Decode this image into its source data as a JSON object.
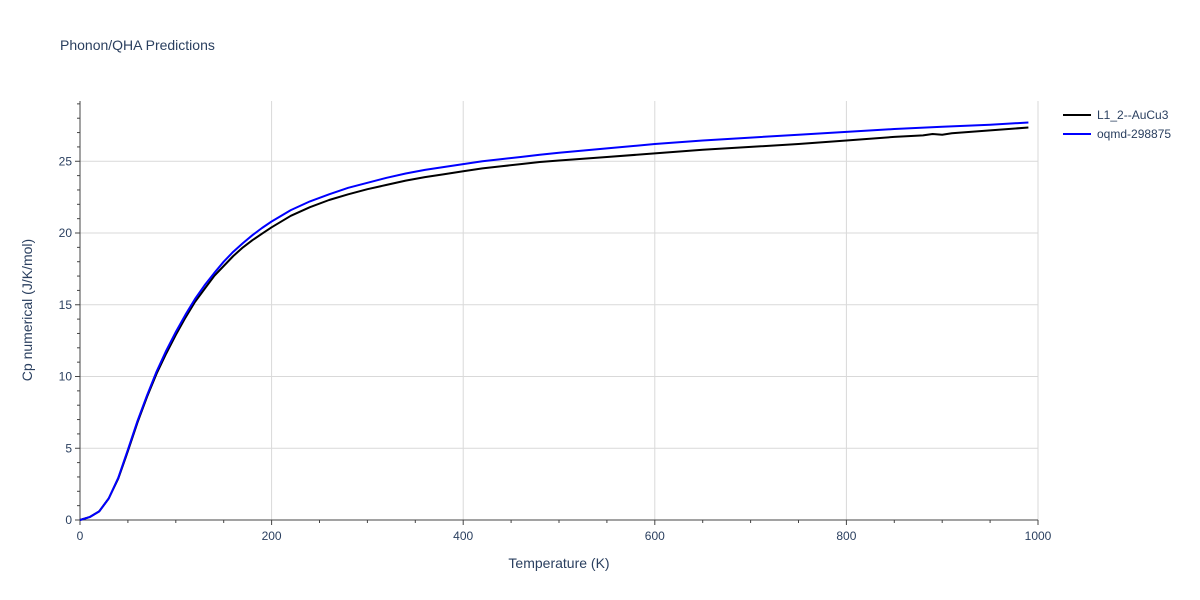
{
  "chart_data": {
    "type": "line",
    "title": "Phonon/QHA Predictions",
    "xlabel": "Temperature (K)",
    "ylabel": "Cp numerical (J/K/mol)",
    "xlim": [
      0,
      1000
    ],
    "ylim": [
      0,
      29.2
    ],
    "xticks": [
      0,
      200,
      400,
      600,
      800,
      1000
    ],
    "yticks": [
      0,
      5,
      10,
      15,
      20,
      25
    ],
    "grid": true,
    "legend_position": "top-right",
    "series": [
      {
        "name": "L1_2--AuCu3",
        "color": "#000000",
        "x": [
          0,
          10,
          20,
          30,
          40,
          50,
          60,
          70,
          80,
          90,
          100,
          110,
          120,
          130,
          140,
          150,
          160,
          170,
          180,
          190,
          200,
          220,
          240,
          260,
          280,
          300,
          320,
          340,
          360,
          380,
          400,
          420,
          440,
          460,
          480,
          500,
          550,
          600,
          650,
          700,
          750,
          800,
          850,
          880,
          890,
          900,
          910,
          950,
          990
        ],
        "y": [
          0,
          0.2,
          0.6,
          1.5,
          2.9,
          4.8,
          6.8,
          8.6,
          10.2,
          11.6,
          12.9,
          14.1,
          15.2,
          16.1,
          17.0,
          17.7,
          18.4,
          19.0,
          19.5,
          19.95,
          20.4,
          21.2,
          21.8,
          22.3,
          22.7,
          23.05,
          23.35,
          23.65,
          23.9,
          24.1,
          24.3,
          24.5,
          24.65,
          24.8,
          24.95,
          25.05,
          25.3,
          25.55,
          25.8,
          26.0,
          26.2,
          26.45,
          26.7,
          26.8,
          26.9,
          26.85,
          26.95,
          27.15,
          27.35
        ]
      },
      {
        "name": "oqmd-298875",
        "color": "#0000ff",
        "x": [
          0,
          10,
          20,
          30,
          40,
          50,
          60,
          70,
          80,
          90,
          100,
          110,
          120,
          130,
          140,
          150,
          160,
          170,
          180,
          190,
          200,
          220,
          240,
          260,
          280,
          300,
          320,
          340,
          360,
          380,
          400,
          420,
          440,
          460,
          480,
          500,
          550,
          600,
          650,
          700,
          750,
          800,
          850,
          900,
          950,
          990
        ],
        "y": [
          0,
          0.2,
          0.6,
          1.5,
          2.95,
          4.9,
          6.9,
          8.7,
          10.35,
          11.8,
          13.1,
          14.3,
          15.4,
          16.35,
          17.2,
          18.0,
          18.7,
          19.3,
          19.85,
          20.35,
          20.8,
          21.6,
          22.2,
          22.7,
          23.15,
          23.5,
          23.85,
          24.15,
          24.4,
          24.6,
          24.8,
          25.0,
          25.15,
          25.3,
          25.45,
          25.6,
          25.9,
          26.2,
          26.45,
          26.65,
          26.85,
          27.05,
          27.25,
          27.4,
          27.55,
          27.7
        ]
      }
    ]
  }
}
